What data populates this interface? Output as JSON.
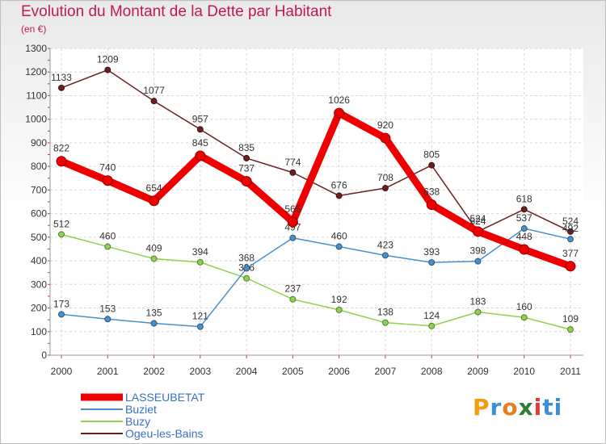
{
  "header": {
    "title": "Evolution du Montant de la Dette par Habitant",
    "subtitle": "(en €)"
  },
  "logo": {
    "text": "Proxiti",
    "letters": [
      "P",
      "r",
      "o",
      "x",
      "i",
      "ti"
    ]
  },
  "chart_data": {
    "type": "line",
    "title": "Evolution du Montant de la Dette par Habitant",
    "subtitle": "(en €)",
    "xlabel": "",
    "ylabel": "",
    "ylim": [
      0,
      1300
    ],
    "yticks": [
      0,
      100,
      200,
      300,
      400,
      500,
      600,
      700,
      800,
      900,
      1000,
      1100,
      1200,
      1300
    ],
    "grid": true,
    "legend_position": "bottom-left",
    "categories": [
      "2000",
      "2001",
      "2002",
      "2003",
      "2004",
      "2005",
      "2006",
      "2007",
      "2008",
      "2009",
      "2010",
      "2011"
    ],
    "series": [
      {
        "name": "Ogeu-les-Bains",
        "color": "#6b1f1f",
        "values": [
          1133,
          1209,
          1077,
          957,
          835,
          774,
          676,
          708,
          805,
          524,
          618,
          524
        ]
      },
      {
        "name": "Buzy",
        "color": "#8fd14f",
        "values": [
          512,
          460,
          409,
          394,
          326,
          237,
          192,
          138,
          124,
          183,
          160,
          109
        ]
      },
      {
        "name": "Buziet",
        "color": "#4a90c8",
        "values": [
          173,
          153,
          135,
          121,
          368,
          497,
          460,
          423,
          393,
          398,
          537,
          492
        ]
      },
      {
        "name": "LASSEUBETAT",
        "color": "#ee0000",
        "values": [
          822,
          740,
          654,
          845,
          737,
          565,
          1026,
          920,
          638,
          524,
          448,
          377
        ]
      }
    ],
    "legend": [
      "LASSEUBETAT",
      "Buziet",
      "Buzy",
      "Ogeu-les-Bains"
    ]
  }
}
